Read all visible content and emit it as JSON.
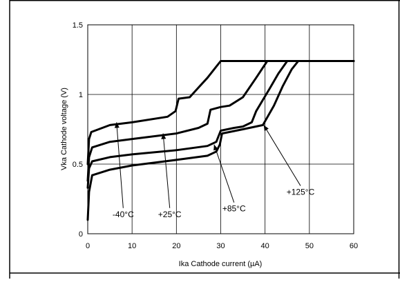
{
  "chart_data": {
    "type": "line",
    "xlabel": "Ika Cathode current (µA)",
    "ylabel": "Vka Cathode voltage (V)",
    "xlim": [
      0,
      60
    ],
    "ylim": [
      0,
      1.5
    ],
    "x_ticks": [
      0,
      10,
      20,
      30,
      40,
      50,
      60
    ],
    "x_tick_labels": [
      "0",
      "10",
      "20",
      "30",
      "40",
      "50",
      "60"
    ],
    "y_ticks": [
      0,
      0.5,
      1,
      1.5
    ],
    "y_tick_labels": [
      "0",
      "0.5",
      "1",
      "1.5"
    ],
    "grid": true,
    "series": [
      {
        "name": "-40°C",
        "points": [
          [
            0,
            0.5
          ],
          [
            0.3,
            0.68
          ],
          [
            0.8,
            0.73
          ],
          [
            5,
            0.78
          ],
          [
            10,
            0.8
          ],
          [
            18,
            0.84
          ],
          [
            19.8,
            0.88
          ],
          [
            20.5,
            0.97
          ],
          [
            23,
            0.98
          ],
          [
            25,
            1.05
          ],
          [
            27,
            1.12
          ],
          [
            29,
            1.2
          ],
          [
            30,
            1.24
          ],
          [
            40,
            1.24
          ],
          [
            50,
            1.24
          ],
          [
            60,
            1.24
          ]
        ]
      },
      {
        "name": "+25°C",
        "points": [
          [
            0,
            0.38
          ],
          [
            0.3,
            0.55
          ],
          [
            1,
            0.62
          ],
          [
            5,
            0.66
          ],
          [
            10,
            0.68
          ],
          [
            20,
            0.72
          ],
          [
            25,
            0.76
          ],
          [
            27,
            0.79
          ],
          [
            27.7,
            0.89
          ],
          [
            30,
            0.91
          ],
          [
            32,
            0.92
          ],
          [
            35,
            0.98
          ],
          [
            38,
            1.12
          ],
          [
            40.5,
            1.24
          ],
          [
            50,
            1.24
          ],
          [
            60,
            1.24
          ]
        ]
      },
      {
        "name": "+85°C",
        "points": [
          [
            0,
            0.33
          ],
          [
            0.3,
            0.47
          ],
          [
            1,
            0.52
          ],
          [
            5,
            0.55
          ],
          [
            10,
            0.57
          ],
          [
            20,
            0.6
          ],
          [
            27,
            0.63
          ],
          [
            29,
            0.66
          ],
          [
            30,
            0.74
          ],
          [
            33,
            0.76
          ],
          [
            35,
            0.77
          ],
          [
            37,
            0.8
          ],
          [
            38,
            0.88
          ],
          [
            41,
            1.04
          ],
          [
            43,
            1.15
          ],
          [
            45,
            1.24
          ],
          [
            50,
            1.24
          ],
          [
            60,
            1.24
          ]
        ]
      },
      {
        "name": "+125°C",
        "points": [
          [
            0,
            0.1
          ],
          [
            0.3,
            0.3
          ],
          [
            1,
            0.42
          ],
          [
            5,
            0.46
          ],
          [
            10,
            0.49
          ],
          [
            20,
            0.53
          ],
          [
            27,
            0.56
          ],
          [
            29,
            0.59
          ],
          [
            29.8,
            0.64
          ],
          [
            30.3,
            0.72
          ],
          [
            35,
            0.75
          ],
          [
            39.5,
            0.78
          ],
          [
            42,
            0.92
          ],
          [
            44,
            1.06
          ],
          [
            46,
            1.18
          ],
          [
            47.5,
            1.24
          ],
          [
            50,
            1.24
          ],
          [
            60,
            1.24
          ]
        ]
      }
    ],
    "annotations": [
      {
        "text": "-40°C",
        "at": [
          8,
          0.12
        ],
        "points_to": [
          6.5,
          0.8
        ]
      },
      {
        "text": "+25°C",
        "at": [
          18.5,
          0.12
        ],
        "points_to": [
          17,
          0.72
        ]
      },
      {
        "text": "+85°C",
        "at": [
          33,
          0.16
        ],
        "points_to": [
          28.5,
          0.64
        ]
      },
      {
        "text": "+125°C",
        "at": [
          48,
          0.28
        ],
        "points_to": [
          39.7,
          0.78
        ]
      }
    ]
  }
}
